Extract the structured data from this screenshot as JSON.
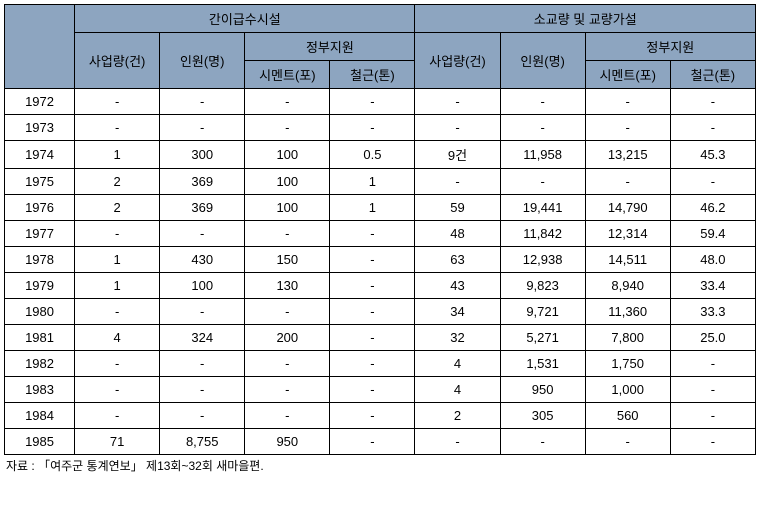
{
  "headers": {
    "group1": "간이급수시설",
    "group2": "소교량 및 교량가설",
    "col_biz": "사업량(건)",
    "col_person": "인원(명)",
    "col_gov": "정부지원",
    "col_cement": "시멘트(포)",
    "col_rebar": "철근(톤)"
  },
  "rows": [
    {
      "year": "1972",
      "a1": "-",
      "a2": "-",
      "a3": "-",
      "a4": "-",
      "b1": "-",
      "b2": "-",
      "b3": "-",
      "b4": "-"
    },
    {
      "year": "1973",
      "a1": "-",
      "a2": "-",
      "a3": "-",
      "a4": "-",
      "b1": "-",
      "b2": "-",
      "b3": "-",
      "b4": "-"
    },
    {
      "year": "1974",
      "a1": "1",
      "a2": "300",
      "a3": "100",
      "a4": "0.5",
      "b1": "9건",
      "b2": "11,958",
      "b3": "13,215",
      "b4": "45.3"
    },
    {
      "year": "1975",
      "a1": "2",
      "a2": "369",
      "a3": "100",
      "a4": "1",
      "b1": "-",
      "b2": "-",
      "b3": "-",
      "b4": "-"
    },
    {
      "year": "1976",
      "a1": "2",
      "a2": "369",
      "a3": "100",
      "a4": "1",
      "b1": "59",
      "b2": "19,441",
      "b3": "14,790",
      "b4": "46.2"
    },
    {
      "year": "1977",
      "a1": "-",
      "a2": "-",
      "a3": "-",
      "a4": "-",
      "b1": "48",
      "b2": "11,842",
      "b3": "12,314",
      "b4": "59.4"
    },
    {
      "year": "1978",
      "a1": "1",
      "a2": "430",
      "a3": "150",
      "a4": "-",
      "b1": "63",
      "b2": "12,938",
      "b3": "14,511",
      "b4": "48.0"
    },
    {
      "year": "1979",
      "a1": "1",
      "a2": "100",
      "a3": "130",
      "a4": "-",
      "b1": "43",
      "b2": "9,823",
      "b3": "8,940",
      "b4": "33.4"
    },
    {
      "year": "1980",
      "a1": "-",
      "a2": "-",
      "a3": "-",
      "a4": "-",
      "b1": "34",
      "b2": "9,721",
      "b3": "11,360",
      "b4": "33.3"
    },
    {
      "year": "1981",
      "a1": "4",
      "a2": "324",
      "a3": "200",
      "a4": "-",
      "b1": "32",
      "b2": "5,271",
      "b3": "7,800",
      "b4": "25.0"
    },
    {
      "year": "1982",
      "a1": "-",
      "a2": "-",
      "a3": "-",
      "a4": "-",
      "b1": "4",
      "b2": "1,531",
      "b3": "1,750",
      "b4": "-"
    },
    {
      "year": "1983",
      "a1": "-",
      "a2": "-",
      "a3": "-",
      "a4": "-",
      "b1": "4",
      "b2": "950",
      "b3": "1,000",
      "b4": "-"
    },
    {
      "year": "1984",
      "a1": "-",
      "a2": "-",
      "a3": "-",
      "a4": "-",
      "b1": "2",
      "b2": "305",
      "b3": "560",
      "b4": "-"
    },
    {
      "year": "1985",
      "a1": "71",
      "a2": "8,755",
      "a3": "950",
      "a4": "-",
      "b1": "-",
      "b2": "-",
      "b3": "-",
      "b4": "-"
    }
  ],
  "footnote": "자료 : 「여주군 통계연보」 제13회~32회 새마을편."
}
